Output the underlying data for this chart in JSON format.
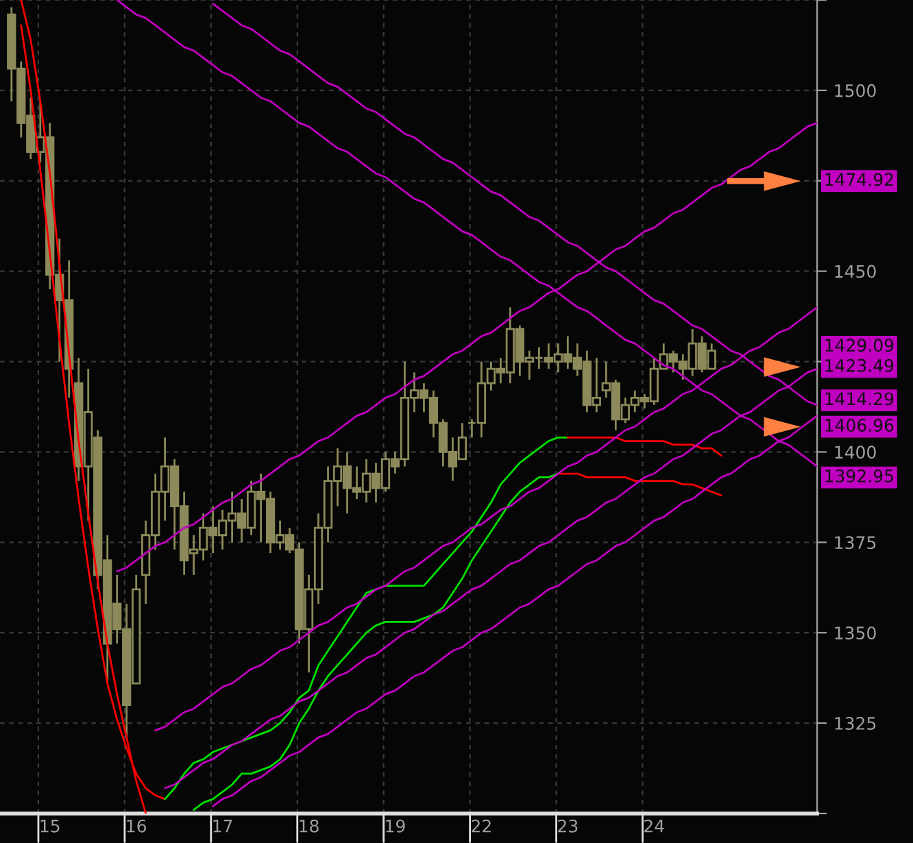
{
  "chart_data": {
    "type": "candlestick",
    "color": "#8c8a5a",
    "categories": [
      null,
      null,
      null,
      null,
      "15",
      null,
      null,
      null,
      null,
      null,
      null,
      null,
      null,
      "16",
      null,
      null,
      null,
      null,
      null,
      null,
      null,
      null,
      "17",
      null,
      null,
      null,
      null,
      null,
      null,
      null,
      null,
      "18",
      null,
      null,
      null,
      null,
      null,
      null,
      null,
      null,
      "19",
      null,
      null,
      null,
      null,
      null,
      null,
      null,
      null,
      "22",
      null,
      null,
      null,
      null,
      null,
      null,
      null,
      null,
      "23",
      null,
      null,
      null,
      null,
      null,
      null,
      null,
      null,
      "24",
      null,
      null,
      null,
      null,
      null,
      null,
      null,
      null,
      null,
      null,
      null,
      null,
      null,
      null,
      null,
      null,
      null
    ],
    "ohlc": [
      [
        1521,
        1523,
        1497,
        1506
      ],
      [
        1506,
        1508,
        1487,
        1491
      ],
      [
        1493,
        1498,
        1481,
        1483
      ],
      [
        1483,
        1497,
        1480,
        1487
      ],
      [
        1487,
        1491,
        1445,
        1449
      ],
      [
        1449,
        1459,
        1425,
        1442
      ],
      [
        1442,
        1453,
        1415,
        1423
      ],
      [
        1419,
        1426,
        1392,
        1396
      ],
      [
        1396,
        1423,
        1381,
        1411
      ],
      [
        1404,
        1406,
        1362,
        1366
      ],
      [
        1370,
        1377,
        1336,
        1347
      ],
      [
        1358,
        1366,
        1347,
        1351
      ],
      [
        1351,
        1358,
        1321,
        1330
      ],
      [
        1336,
        1366,
        1336,
        1362
      ],
      [
        1366,
        1381,
        1358,
        1377
      ],
      [
        1377,
        1394,
        1373,
        1389
      ],
      [
        1389,
        1404,
        1381,
        1396
      ],
      [
        1396,
        1398,
        1373,
        1385
      ],
      [
        1385,
        1389,
        1366,
        1370
      ],
      [
        1372,
        1377,
        1366,
        1373
      ],
      [
        1373,
        1383,
        1370,
        1379
      ],
      [
        1379,
        1385,
        1372,
        1377
      ],
      [
        1377,
        1384,
        1373,
        1381
      ],
      [
        1381,
        1389,
        1375,
        1383
      ],
      [
        1383,
        1387,
        1375,
        1379
      ],
      [
        1379,
        1392,
        1377,
        1389
      ],
      [
        1389,
        1394,
        1375,
        1387
      ],
      [
        1387,
        1389,
        1372,
        1375
      ],
      [
        1375,
        1381,
        1373,
        1377
      ],
      [
        1377,
        1379,
        1372,
        1373
      ],
      [
        1373,
        1375,
        1347,
        1351
      ],
      [
        1351,
        1366,
        1339,
        1362
      ],
      [
        1362,
        1383,
        1358,
        1379
      ],
      [
        1379,
        1396,
        1375,
        1392
      ],
      [
        1392,
        1401,
        1385,
        1396
      ],
      [
        1396,
        1400,
        1383,
        1390
      ],
      [
        1390,
        1396,
        1387,
        1389
      ],
      [
        1389,
        1398,
        1386,
        1394
      ],
      [
        1394,
        1397,
        1386,
        1390
      ],
      [
        1390,
        1400,
        1389,
        1398
      ],
      [
        1398,
        1400,
        1394,
        1396
      ],
      [
        1398,
        1425,
        1396,
        1415
      ],
      [
        1415,
        1422,
        1411,
        1417
      ],
      [
        1417,
        1419,
        1411,
        1415
      ],
      [
        1415,
        1417,
        1404,
        1408
      ],
      [
        1408,
        1409,
        1396,
        1400
      ],
      [
        1400,
        1404,
        1392,
        1396
      ],
      [
        1398,
        1408,
        1398,
        1404
      ],
      [
        1408,
        1409,
        1404,
        1408
      ],
      [
        1408,
        1425,
        1404,
        1419
      ],
      [
        1419,
        1425,
        1417,
        1423
      ],
      [
        1423,
        1426,
        1419,
        1422
      ],
      [
        1422,
        1440,
        1419,
        1434
      ],
      [
        1434,
        1435,
        1421,
        1425
      ],
      [
        1425,
        1428,
        1420,
        1426
      ],
      [
        1426,
        1429,
        1423,
        1426
      ],
      [
        1426,
        1430,
        1423,
        1425
      ],
      [
        1425,
        1430,
        1422,
        1427
      ],
      [
        1427,
        1432,
        1423,
        1425
      ],
      [
        1426,
        1430,
        1421,
        1423
      ],
      [
        1425,
        1428,
        1411,
        1413
      ],
      [
        1413,
        1426,
        1411,
        1415
      ],
      [
        1417,
        1425,
        1415,
        1419
      ],
      [
        1419,
        1420,
        1406,
        1409
      ],
      [
        1409,
        1415,
        1408,
        1413
      ],
      [
        1413,
        1417,
        1411,
        1415
      ],
      [
        1415,
        1416,
        1412,
        1414
      ],
      [
        1414,
        1426,
        1413,
        1423
      ],
      [
        1423,
        1430,
        1423,
        1427
      ],
      [
        1427,
        1428,
        1422,
        1425
      ],
      [
        1425,
        1427,
        1420,
        1423
      ],
      [
        1423,
        1434,
        1421,
        1430
      ],
      [
        1430,
        1432,
        1422,
        1423
      ],
      [
        1423,
        1430,
        1423,
        1428
      ],
      null,
      null,
      null,
      null,
      null,
      null,
      null,
      null,
      null,
      null,
      null
    ],
    "series": [
      {
        "type": "line",
        "color": "#ff0000",
        "values": [
          null,
          1518,
          1500,
          1478,
          1455,
          1431,
          1408,
          1387,
          1368,
          1351,
          1336,
          1326,
          1318,
          1311,
          1307,
          1305,
          1304,
          null,
          null,
          null,
          null,
          null,
          null,
          null,
          null,
          null,
          null,
          null,
          null,
          null,
          null,
          null,
          null,
          null,
          null,
          null,
          null,
          null,
          null,
          null,
          null,
          null,
          null,
          null,
          null,
          null,
          null,
          null,
          null,
          null,
          null,
          null,
          null,
          null,
          null,
          null,
          null,
          null,
          null,
          null,
          null,
          null,
          null,
          null,
          null,
          null,
          null,
          null,
          null,
          null,
          null,
          null,
          null,
          null,
          null,
          null,
          null,
          null,
          null,
          null,
          null,
          null,
          null,
          null,
          null
        ]
      },
      {
        "type": "line",
        "color": "#00e000",
        "values": [
          null,
          null,
          null,
          null,
          null,
          null,
          null,
          null,
          null,
          null,
          null,
          null,
          null,
          null,
          null,
          null,
          1304,
          1307,
          1311,
          1314,
          1315,
          1317,
          1318,
          1319,
          1320,
          1321,
          1322,
          1323,
          1325,
          1328,
          1332,
          1334,
          1341,
          1345,
          1349,
          1353,
          1357,
          1361,
          1362,
          1363,
          1363,
          1363,
          1363,
          1363,
          1366,
          1369,
          1372,
          1375,
          1378,
          1382,
          1386,
          1391,
          1394,
          1397,
          1399,
          1401,
          1403,
          1404,
          1404,
          null,
          null,
          null,
          null,
          null,
          null,
          null,
          null,
          null,
          null,
          null,
          null,
          null,
          null,
          null,
          null,
          null,
          null,
          null,
          null,
          null,
          null,
          null,
          null,
          null,
          null
        ]
      },
      {
        "type": "line",
        "color": "#ff0000",
        "values": [
          null,
          null,
          null,
          null,
          null,
          null,
          null,
          null,
          null,
          null,
          null,
          null,
          null,
          null,
          null,
          null,
          null,
          null,
          null,
          null,
          null,
          null,
          null,
          null,
          null,
          null,
          null,
          null,
          null,
          null,
          null,
          null,
          null,
          null,
          null,
          null,
          null,
          null,
          null,
          null,
          null,
          null,
          null,
          null,
          null,
          null,
          null,
          null,
          null,
          null,
          null,
          null,
          null,
          null,
          null,
          null,
          null,
          null,
          1404,
          1404,
          1404,
          1404,
          1404,
          1404,
          1403,
          1403,
          1403,
          1403,
          1403,
          1402,
          1402,
          1402,
          1401,
          1401,
          1399,
          null,
          null,
          null,
          null,
          null,
          null,
          null,
          null,
          null,
          null
        ]
      },
      {
        "type": "line",
        "color": "#ff0000",
        "values": [
          null,
          1525,
          1514,
          1497,
          1477,
          1452,
          1427,
          1403,
          1383,
          1364,
          1347,
          1333,
          1321,
          1309,
          1300,
          null,
          null,
          null,
          null,
          null,
          null,
          null,
          null,
          null,
          null,
          null,
          null,
          null,
          null,
          null,
          null,
          null,
          null,
          null,
          null,
          null,
          null,
          null,
          null,
          null,
          null,
          null,
          null,
          null,
          null,
          null,
          null,
          null,
          null,
          null,
          null,
          null,
          null,
          null,
          null,
          null,
          null,
          null,
          null,
          null,
          null,
          null,
          null,
          null,
          null,
          null,
          null,
          null,
          null,
          null,
          null,
          null,
          null,
          null,
          null,
          null,
          null,
          null,
          null,
          null,
          null,
          null,
          null,
          null,
          null
        ]
      },
      {
        "type": "line",
        "color": "#00e000",
        "values": [
          null,
          null,
          null,
          null,
          null,
          null,
          null,
          null,
          null,
          null,
          null,
          null,
          null,
          null,
          null,
          null,
          null,
          null,
          null,
          1301,
          1303,
          1304,
          1306,
          1308,
          1311,
          1311,
          1312,
          1313,
          1315,
          1319,
          1325,
          1329,
          1334,
          1338,
          1341,
          1344,
          1347,
          1350,
          1352,
          1353,
          1353,
          1353,
          1353,
          1354,
          1355,
          1357,
          1361,
          1365,
          1370,
          1374,
          1378,
          1382,
          1386,
          1389,
          1391,
          1393,
          1393,
          1394,
          null,
          null,
          null,
          null,
          null,
          null,
          null,
          null,
          null,
          null,
          null,
          null,
          null,
          null,
          null,
          null,
          null,
          null,
          null,
          null,
          null,
          null,
          null,
          null,
          null,
          null,
          null
        ]
      },
      {
        "type": "line",
        "color": "#ff0000",
        "values": [
          null,
          null,
          null,
          null,
          null,
          null,
          null,
          null,
          null,
          null,
          null,
          null,
          null,
          null,
          null,
          null,
          null,
          null,
          null,
          null,
          null,
          null,
          null,
          null,
          null,
          null,
          null,
          null,
          null,
          null,
          null,
          null,
          null,
          null,
          null,
          null,
          null,
          null,
          null,
          null,
          null,
          null,
          null,
          null,
          null,
          null,
          null,
          null,
          null,
          null,
          null,
          null,
          null,
          null,
          null,
          null,
          null,
          1394,
          1394,
          1394,
          1393,
          1393,
          1393,
          1393,
          1393,
          1392,
          1392,
          1392,
          1392,
          1392,
          1391,
          1391,
          1390,
          1389,
          1388,
          null,
          null,
          null,
          null,
          null,
          null,
          null,
          null,
          null,
          null
        ]
      },
      {
        "type": "line",
        "color": "#c000c0",
        "values": [
          null,
          null,
          null,
          null,
          null,
          null,
          null,
          null,
          null,
          null,
          null,
          1367,
          1368,
          1370,
          1372,
          1374,
          1375,
          1377,
          1379,
          1380,
          1382,
          1384,
          1386,
          1387,
          1389,
          1391,
          1392,
          1394,
          1396,
          1398,
          1399,
          1401,
          1403,
          1404,
          1406,
          1408,
          1410,
          1411,
          1413,
          1415,
          1416,
          1418,
          1420,
          1421,
          1423,
          1425,
          1427,
          1428,
          1430,
          1432,
          1433,
          1435,
          1437,
          1439,
          1440,
          1442,
          1444,
          1445,
          1447,
          1449,
          1450,
          1452,
          1454,
          1456,
          1457,
          1459,
          1461,
          1462,
          1464,
          1466,
          1467,
          1469,
          1471,
          1473,
          1474,
          1476,
          1478,
          1479,
          1481,
          1483,
          1484,
          1486,
          1488,
          1490,
          1491
        ]
      },
      {
        "type": "line",
        "color": "#c000c0",
        "values": [
          null,
          null,
          null,
          null,
          null,
          null,
          null,
          null,
          null,
          null,
          null,
          null,
          null,
          null,
          null,
          1323,
          1324,
          1326,
          1328,
          1329,
          1331,
          1333,
          1335,
          1336,
          1338,
          1340,
          1341,
          1343,
          1345,
          1346,
          1348,
          1350,
          1352,
          1353,
          1355,
          1357,
          1358,
          1360,
          1362,
          1363,
          1365,
          1367,
          1368,
          1370,
          1372,
          1374,
          1375,
          1377,
          1379,
          1380,
          1382,
          1384,
          1385,
          1387,
          1389,
          1390,
          1392,
          1394,
          1396,
          1397,
          1399,
          1400,
          1402,
          1404,
          1406,
          1407,
          1409,
          1411,
          1412,
          1414,
          1416,
          1417,
          1419,
          1421,
          1423,
          1424,
          1426,
          1428,
          1429,
          1431,
          1433,
          1434,
          1436,
          1438,
          1440
        ]
      },
      {
        "type": "line",
        "color": "#c000c0",
        "values": [
          null,
          null,
          null,
          null,
          null,
          null,
          null,
          null,
          null,
          null,
          null,
          null,
          null,
          null,
          null,
          null,
          1307,
          1308,
          1310,
          1312,
          1314,
          1315,
          1317,
          1319,
          1320,
          1322,
          1324,
          1326,
          1327,
          1329,
          1331,
          1332,
          1334,
          1336,
          1338,
          1339,
          1341,
          1343,
          1344,
          1346,
          1348,
          1350,
          1351,
          1353,
          1355,
          1356,
          1358,
          1360,
          1362,
          1363,
          1365,
          1367,
          1369,
          1370,
          1372,
          1374,
          1375,
          1377,
          1379,
          1381,
          1382,
          1384,
          1386,
          1387,
          1389,
          1391,
          1393,
          1394,
          1396,
          1398,
          1399,
          1401,
          1403,
          1405,
          1406,
          1408,
          1410,
          1411,
          1413,
          1415,
          1417,
          1418,
          1420,
          1422,
          1423
        ]
      },
      {
        "type": "line",
        "color": "#c000c0",
        "values": [
          null,
          null,
          null,
          null,
          null,
          null,
          null,
          null,
          null,
          null,
          null,
          null,
          null,
          null,
          null,
          null,
          null,
          null,
          null,
          null,
          null,
          1302,
          1304,
          1305,
          1307,
          1309,
          1310,
          1312,
          1314,
          1316,
          1317,
          1319,
          1321,
          1322,
          1324,
          1326,
          1328,
          1329,
          1331,
          1333,
          1334,
          1336,
          1338,
          1339,
          1341,
          1343,
          1345,
          1346,
          1348,
          1350,
          1351,
          1353,
          1355,
          1357,
          1358,
          1360,
          1362,
          1363,
          1365,
          1367,
          1369,
          1370,
          1372,
          1374,
          1375,
          1377,
          1379,
          1381,
          1382,
          1384,
          1386,
          1387,
          1389,
          1391,
          1393,
          1394,
          1396,
          1398,
          1399,
          1401,
          1403,
          1404,
          1406,
          1408,
          1410
        ]
      },
      {
        "type": "line",
        "color": "#c000c0",
        "values": [
          null,
          null,
          null,
          null,
          null,
          null,
          null,
          null,
          null,
          null,
          null,
          1525,
          1523,
          1521,
          1520,
          1518,
          1516,
          1514,
          1512,
          1511,
          1509,
          1507,
          1505,
          1504,
          1502,
          1500,
          1498,
          1497,
          1495,
          1493,
          1491,
          1490,
          1488,
          1486,
          1484,
          1483,
          1481,
          1479,
          1477,
          1476,
          1474,
          1472,
          1470,
          1469,
          1467,
          1465,
          1463,
          1461,
          1460,
          1458,
          1456,
          1454,
          1453,
          1451,
          1449,
          1447,
          1446,
          1444,
          1442,
          1440,
          1439,
          1437,
          1435,
          1433,
          1431,
          1430,
          1428,
          1426,
          1424,
          1423,
          1421,
          1419,
          1417,
          1416,
          1414,
          1412,
          1410,
          1409,
          1407,
          1405,
          1403,
          1402,
          1400,
          1398,
          1396
        ]
      },
      {
        "type": "line",
        "color": "#c000c0",
        "values": [
          null,
          null,
          null,
          null,
          null,
          null,
          null,
          null,
          null,
          null,
          null,
          null,
          null,
          null,
          null,
          null,
          null,
          null,
          null,
          null,
          null,
          1524,
          1522,
          1520,
          1518,
          1517,
          1515,
          1513,
          1511,
          1510,
          1508,
          1506,
          1504,
          1502,
          1501,
          1499,
          1497,
          1495,
          1494,
          1492,
          1490,
          1488,
          1487,
          1485,
          1483,
          1481,
          1480,
          1478,
          1476,
          1474,
          1472,
          1471,
          1469,
          1467,
          1465,
          1464,
          1462,
          1460,
          1458,
          1457,
          1455,
          1453,
          1451,
          1450,
          1448,
          1446,
          1444,
          1442,
          1441,
          1439,
          1437,
          1435,
          1434,
          1432,
          1430,
          1428,
          1427,
          1425,
          1423,
          1421,
          1420,
          1418,
          1416,
          1414,
          1413
        ]
      }
    ],
    "ylim": [
      1300,
      1525
    ],
    "yticks": [
      {
        "value": 1300,
        "label": null
      },
      1325,
      1350,
      1375,
      1400,
      {
        "value": 1425,
        "label": null
      },
      1450,
      {
        "value": 1475,
        "label": null
      },
      1500,
      {
        "value": 1525,
        "label": null
      }
    ],
    "grid": true,
    "annotations": [
      "1474.92",
      "1429.09",
      "1423.49",
      "1414.29",
      "1406.96",
      "1392.95"
    ]
  }
}
